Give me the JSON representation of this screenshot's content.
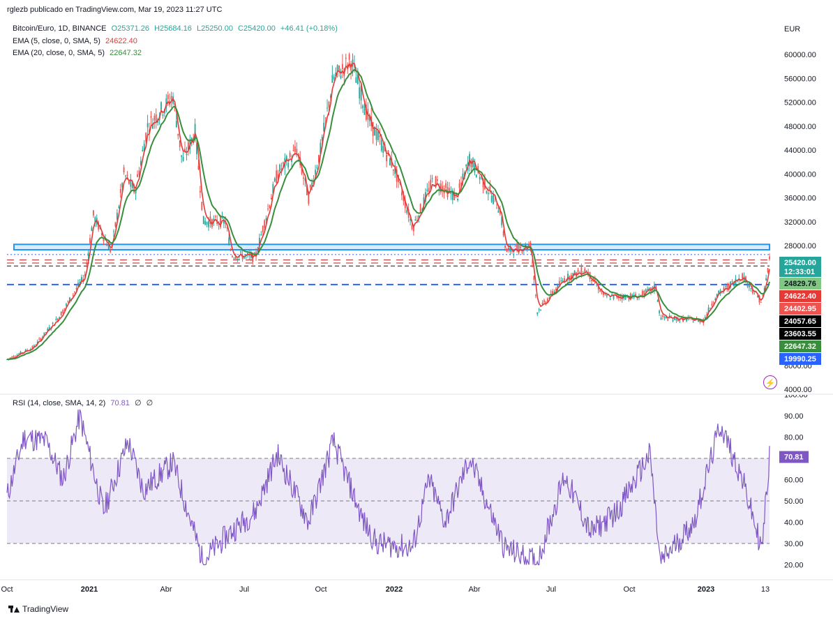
{
  "caption": "rglezb publicado en TradingView.com, Mar 19, 2023 11:27 UTC",
  "currency_label": "EUR",
  "legend": {
    "symbol": "Bitcoin/Euro, 1D, BINANCE",
    "open": "O25371.26",
    "high": "H25684.16",
    "low": "L25250.00",
    "close": "C25420.00",
    "change": "+46.41 (+0.18%)",
    "ema5_label": "EMA (5, close, 0, SMA, 5)",
    "ema5_value": "24622.40",
    "ema20_label": "EMA (20, close, 0, SMA, 5)",
    "ema20_value": "22647.32",
    "rsi_label": "RSI (14, close, SMA, 14, 2)",
    "rsi_value": "70.81",
    "rsi_extra1": "∅",
    "rsi_extra2": "∅"
  },
  "colors": {
    "up": "#26a69a",
    "down": "#ef5350",
    "ema5": "#e53935",
    "ema20": "#388e3c",
    "rsi": "#7e57c2",
    "zone": "#2196f3",
    "dashed_blue": "#2962ff",
    "dashed_red": "#b71c1c",
    "text_muted": "#787b86"
  },
  "price_labels": [
    {
      "text": "25420.00",
      "sub": "12:33:01",
      "bg": "#26a69a",
      "color": "#ffffff",
      "value": 25420
    },
    {
      "text": "24829.76",
      "bg": "#81c784",
      "color": "#131722",
      "value": 24829.76
    },
    {
      "text": "24622.40",
      "bg": "#e53935",
      "color": "#ffffff",
      "value": 24622.4
    },
    {
      "text": "24402.95",
      "bg": "#ef5350",
      "color": "#ffffff",
      "value": 24402.95
    },
    {
      "text": "24057.65",
      "bg": "#000000",
      "color": "#ffffff",
      "value": 24057.65
    },
    {
      "text": "23603.55",
      "bg": "#000000",
      "color": "#ffffff",
      "value": 23603.55
    },
    {
      "text": "22647.32",
      "bg": "#388e3c",
      "color": "#ffffff",
      "value": 22647.32
    },
    {
      "text": "19990.25",
      "bg": "#2962ff",
      "color": "#ffffff",
      "value": 19990.25
    }
  ],
  "rsi_badge": {
    "text": "70.81",
    "bg": "#7e57c2",
    "color": "#ffffff"
  },
  "footer_brand": "TradingView",
  "chart_data": [
    {
      "type": "candlestick",
      "title": "Bitcoin/Euro, 1D, BINANCE",
      "ylabel": "EUR",
      "x_ticks": [
        "Oct",
        "2021",
        "Abr",
        "Jul",
        "Oct",
        "2022",
        "Abr",
        "Jul",
        "Oct",
        "2023",
        "13"
      ],
      "y_ticks": [
        "60000.00",
        "56000.00",
        "52000.00",
        "48000.00",
        "44000.00",
        "40000.00",
        "36000.00",
        "32000.00",
        "28000.00",
        "8000.00",
        "4000.00"
      ],
      "series_points": [
        [
          "2020-09-30",
          9000
        ],
        [
          "2020-10-31",
          11000
        ],
        [
          "2020-11-30",
          16000
        ],
        [
          "2020-12-31",
          23000
        ],
        [
          "2021-01-10",
          33000
        ],
        [
          "2021-01-31",
          27000
        ],
        [
          "2021-02-15",
          40000
        ],
        [
          "2021-02-28",
          37000
        ],
        [
          "2021-03-15",
          48000
        ],
        [
          "2021-04-14",
          53000
        ],
        [
          "2021-04-25",
          42000
        ],
        [
          "2021-05-10",
          47000
        ],
        [
          "2021-05-20",
          32000
        ],
        [
          "2021-06-15",
          32000
        ],
        [
          "2021-06-22",
          26500
        ],
        [
          "2021-07-20",
          26000
        ],
        [
          "2021-08-15",
          40000
        ],
        [
          "2021-09-07",
          44000
        ],
        [
          "2021-09-21",
          36000
        ],
        [
          "2021-10-05",
          44000
        ],
        [
          "2021-10-20",
          56000
        ],
        [
          "2021-11-10",
          59000
        ],
        [
          "2021-12-01",
          49000
        ],
        [
          "2021-12-31",
          41000
        ],
        [
          "2022-01-22",
          31000
        ],
        [
          "2022-02-15",
          39000
        ],
        [
          "2022-03-15",
          36000
        ],
        [
          "2022-03-30",
          42500
        ],
        [
          "2022-05-05",
          34000
        ],
        [
          "2022-05-12",
          27000
        ],
        [
          "2022-06-10",
          28000
        ],
        [
          "2022-06-18",
          17000
        ],
        [
          "2022-07-20",
          22500
        ],
        [
          "2022-08-14",
          24000
        ],
        [
          "2022-09-06",
          19500
        ],
        [
          "2022-10-15",
          19500
        ],
        [
          "2022-11-05",
          21000
        ],
        [
          "2022-11-10",
          16000
        ],
        [
          "2022-12-31",
          15500
        ],
        [
          "2023-01-14",
          19500
        ],
        [
          "2023-02-15",
          23000
        ],
        [
          "2023-03-10",
          18500
        ],
        [
          "2023-03-19",
          25420
        ]
      ],
      "indicators": [
        {
          "name": "EMA (5, close, 0, SMA, 5)",
          "last": 24622.4
        },
        {
          "name": "EMA (20, close, 0, SMA, 5)",
          "last": 22647.32
        }
      ],
      "horizontal_levels": [
        {
          "kind": "zone",
          "from": 27300,
          "to": 28200
        },
        {
          "kind": "dotted",
          "value": 26500
        },
        {
          "kind": "dashed_red",
          "value": 25600
        },
        {
          "kind": "dashed_red",
          "value": 25100
        },
        {
          "kind": "dashed_black",
          "value": 24600
        },
        {
          "kind": "dashed_blue",
          "value": 21500
        }
      ],
      "ylim": [
        4000,
        62000
      ]
    },
    {
      "type": "line",
      "title": "RSI (14, close, SMA, 14, 2)",
      "y_ticks": [
        "100.00",
        "90.00",
        "80.00",
        "70.00",
        "60.00",
        "50.00",
        "40.00",
        "30.00",
        "20.00"
      ],
      "ylim": [
        17,
        100
      ],
      "bands": [
        30,
        50,
        70
      ],
      "series_points": [
        [
          "2020-09-30",
          52
        ],
        [
          "2020-10-20",
          80
        ],
        [
          "2020-11-15",
          78
        ],
        [
          "2020-12-05",
          60
        ],
        [
          "2020-12-25",
          90
        ],
        [
          "2021-01-22",
          45
        ],
        [
          "2021-02-20",
          78
        ],
        [
          "2021-03-10",
          55
        ],
        [
          "2021-04-14",
          68
        ],
        [
          "2021-05-19",
          22
        ],
        [
          "2021-06-20",
          35
        ],
        [
          "2021-07-20",
          45
        ],
        [
          "2021-08-15",
          72
        ],
        [
          "2021-09-21",
          40
        ],
        [
          "2021-10-20",
          78
        ],
        [
          "2021-11-25",
          40
        ],
        [
          "2021-12-10",
          30
        ],
        [
          "2022-01-22",
          28
        ],
        [
          "2022-02-10",
          60
        ],
        [
          "2022-03-01",
          40
        ],
        [
          "2022-03-30",
          70
        ],
        [
          "2022-05-10",
          28
        ],
        [
          "2022-06-18",
          21
        ],
        [
          "2022-07-20",
          62
        ],
        [
          "2022-08-20",
          35
        ],
        [
          "2022-09-20",
          45
        ],
        [
          "2022-10-29",
          72
        ],
        [
          "2022-11-10",
          21
        ],
        [
          "2022-12-20",
          40
        ],
        [
          "2023-01-20",
          86
        ],
        [
          "2023-02-15",
          60
        ],
        [
          "2023-03-10",
          27
        ],
        [
          "2023-03-19",
          70.81
        ]
      ]
    }
  ]
}
